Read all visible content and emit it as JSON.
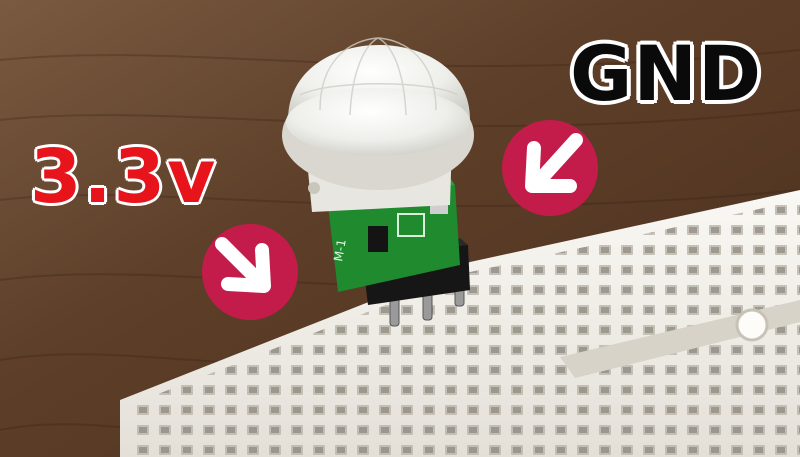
{
  "labels": {
    "supply": "3.3v",
    "ground": "GND"
  },
  "colors": {
    "supply_text": "#e8141c",
    "ground_text": "#0a0a0a",
    "arrow_badge": "#c41c4a",
    "board": "#1f8a2e",
    "breadboard": "#f3f0ea",
    "wood": "#6b4a30"
  },
  "icons": [
    "arrow-down-right-icon",
    "arrow-down-left-icon"
  ]
}
